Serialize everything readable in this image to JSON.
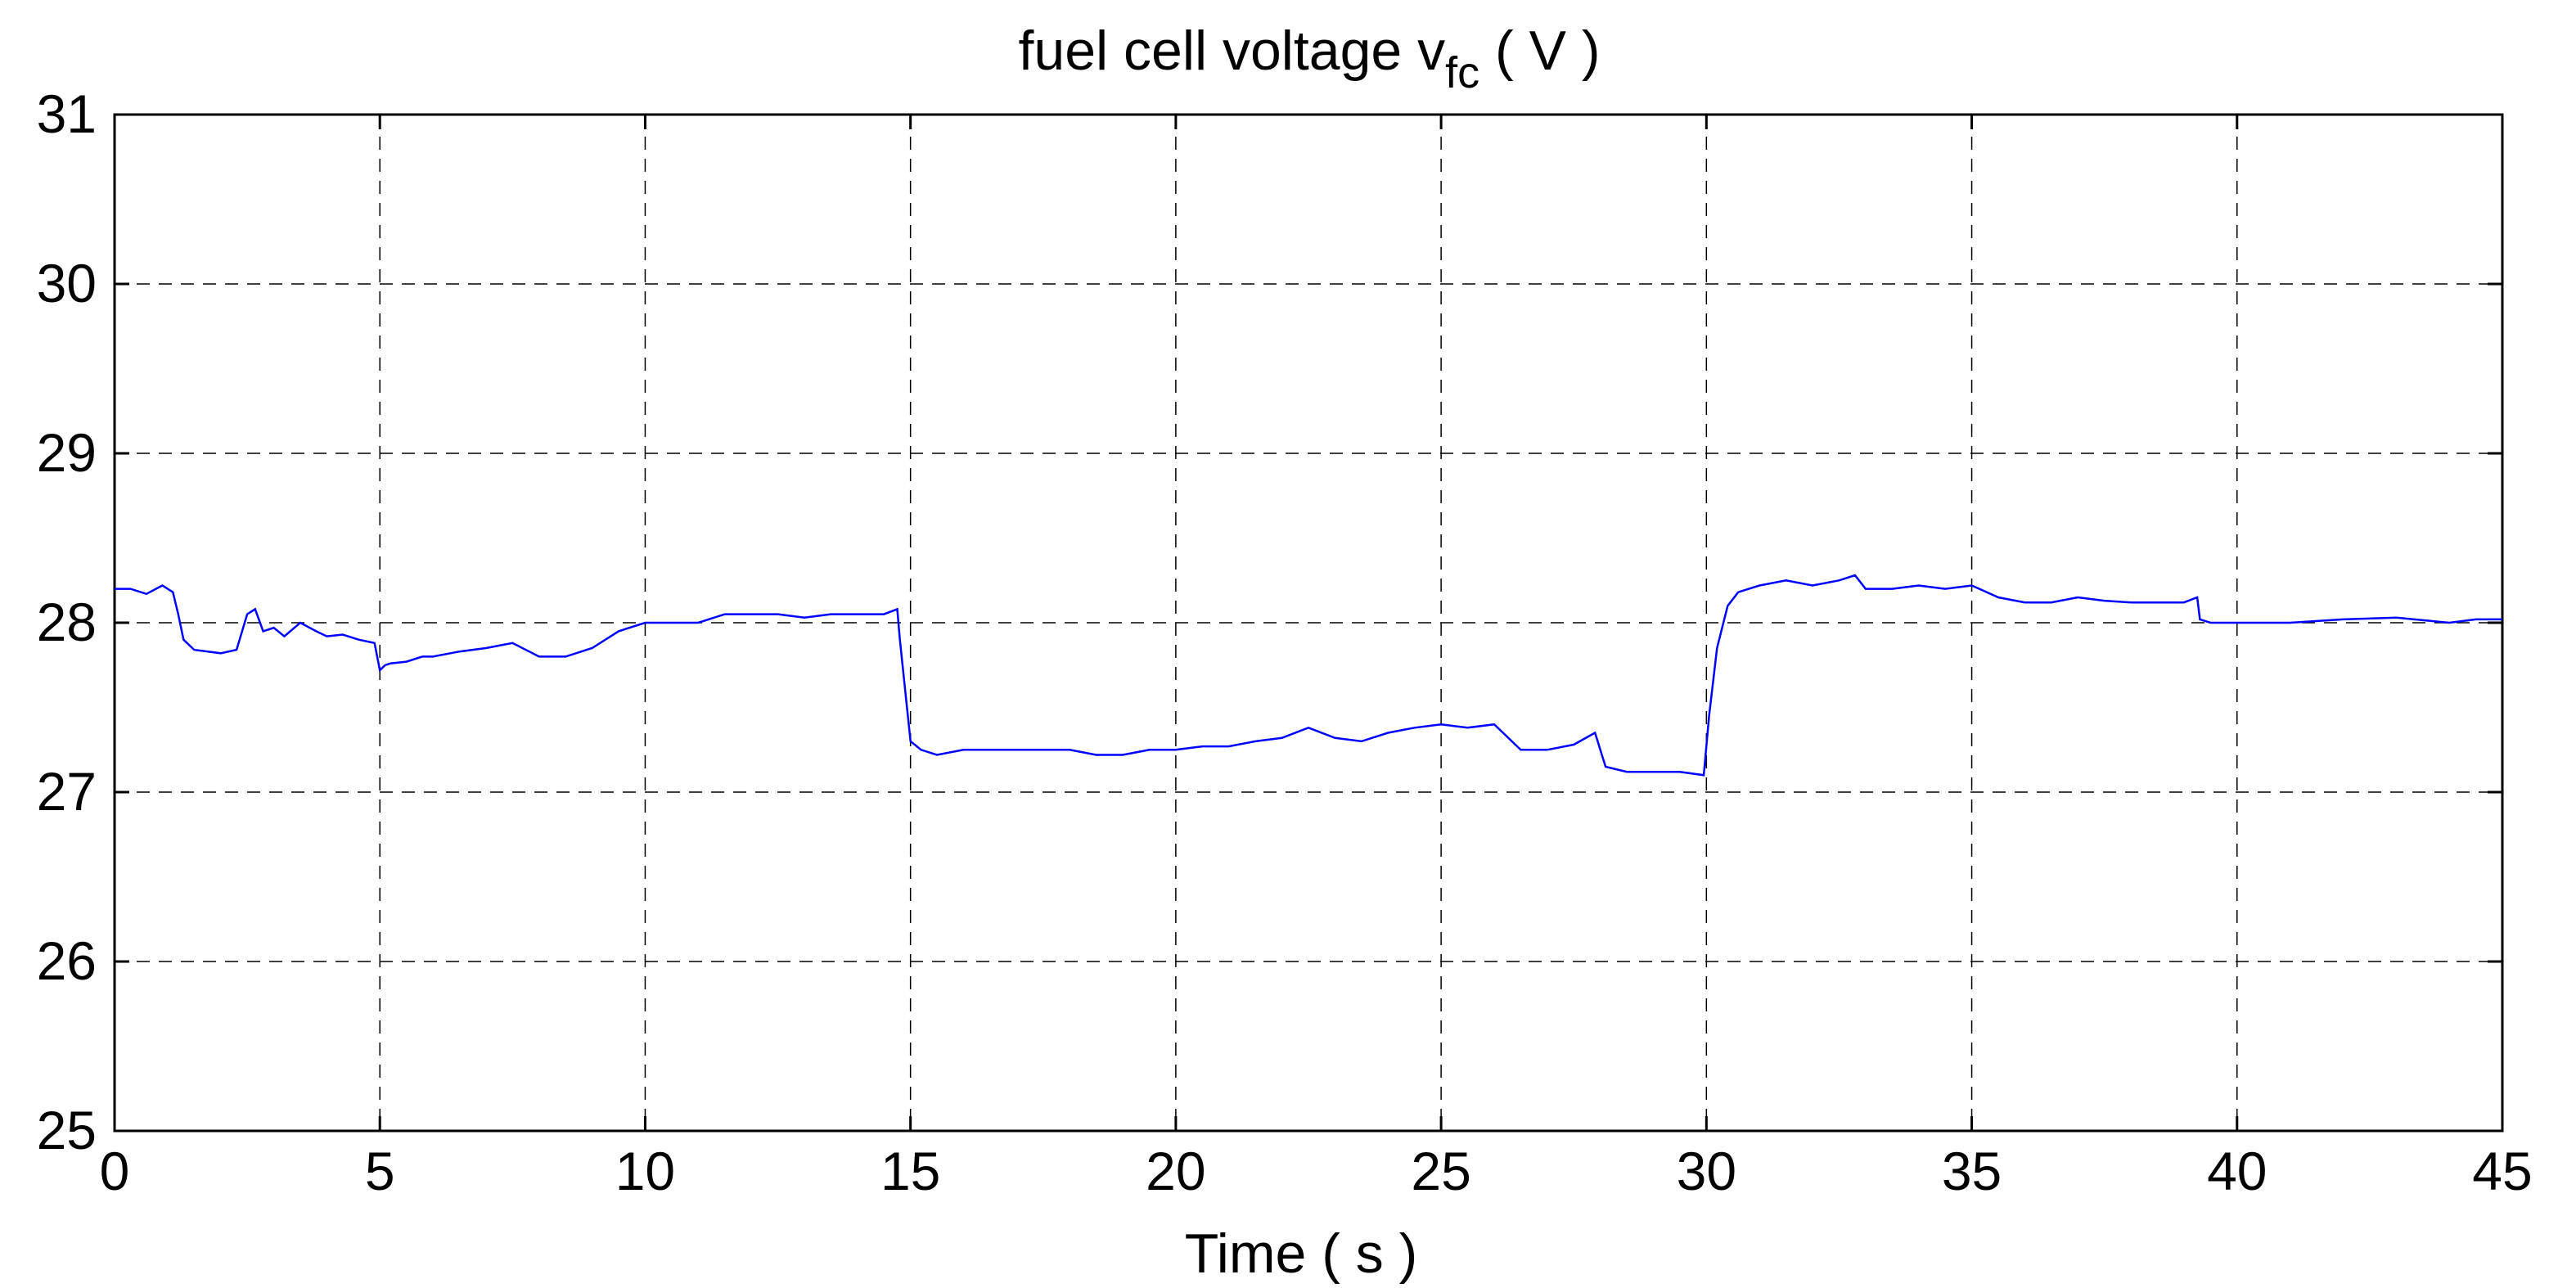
{
  "chart_data": {
    "type": "line",
    "title_main": "fuel cell voltage v",
    "title_sub": "fc",
    "title_unit": " ( V )",
    "xlabel": "Time ( s )",
    "ylabel": "",
    "xlim": [
      0,
      45
    ],
    "ylim": [
      25,
      31
    ],
    "xticks": [
      0,
      5,
      10,
      15,
      20,
      25,
      30,
      35,
      40,
      45
    ],
    "yticks": [
      25,
      26,
      27,
      28,
      29,
      30,
      31
    ],
    "grid": true,
    "line_color": "#0000ff",
    "series": [
      {
        "x": [
          0,
          0.3,
          0.6,
          0.9,
          1.1,
          1.2,
          1.3,
          1.5,
          2.0,
          2.3,
          2.5,
          2.65,
          2.8,
          3.0,
          3.2,
          3.5,
          3.8,
          4.0,
          4.3,
          4.6,
          4.9,
          5.0,
          5.1,
          5.2,
          5.5,
          5.8,
          6.0,
          6.5,
          7.0,
          7.5,
          8.0,
          8.5,
          9.0,
          9.5,
          10.0,
          10.5,
          11.0,
          11.5,
          12.0,
          12.5,
          13.0,
          13.5,
          14.0,
          14.5,
          14.75,
          14.8,
          15.0,
          15.2,
          15.5,
          16.0,
          16.5,
          17.0,
          17.5,
          18.0,
          18.5,
          19.0,
          19.5,
          20.0,
          20.5,
          21.0,
          21.5,
          22.0,
          22.5,
          23.0,
          23.5,
          24.0,
          24.5,
          25.0,
          25.5,
          26.0,
          26.5,
          27.0,
          27.5,
          27.9,
          28.1,
          28.5,
          29.0,
          29.5,
          29.95,
          30.05,
          30.2,
          30.4,
          30.6,
          30.8,
          31.0,
          31.5,
          32.0,
          32.5,
          32.8,
          33.0,
          33.5,
          34.0,
          34.5,
          35.0,
          35.5,
          36.0,
          36.5,
          37.0,
          37.5,
          38.0,
          38.5,
          39.0,
          39.25,
          39.3,
          39.5,
          40.0,
          41.0,
          42.0,
          43.0,
          44.0,
          44.5,
          45.0
        ],
        "values": [
          28.2,
          28.2,
          28.17,
          28.22,
          28.18,
          28.05,
          27.9,
          27.84,
          27.82,
          27.84,
          28.05,
          28.08,
          27.95,
          27.97,
          27.92,
          28.0,
          27.95,
          27.92,
          27.93,
          27.9,
          27.88,
          27.72,
          27.75,
          27.76,
          27.77,
          27.8,
          27.8,
          27.83,
          27.85,
          27.88,
          27.8,
          27.8,
          27.85,
          27.95,
          28.0,
          28.0,
          28.0,
          28.05,
          28.05,
          28.05,
          28.03,
          28.05,
          28.05,
          28.05,
          28.08,
          27.9,
          27.3,
          27.25,
          27.22,
          27.25,
          27.25,
          27.25,
          27.25,
          27.25,
          27.22,
          27.22,
          27.25,
          27.25,
          27.27,
          27.27,
          27.3,
          27.32,
          27.38,
          27.32,
          27.3,
          27.35,
          27.38,
          27.4,
          27.38,
          27.4,
          27.25,
          27.25,
          27.28,
          27.35,
          27.15,
          27.12,
          27.12,
          27.12,
          27.1,
          27.45,
          27.85,
          28.1,
          28.18,
          28.2,
          28.22,
          28.25,
          28.22,
          28.25,
          28.28,
          28.2,
          28.2,
          28.22,
          28.2,
          28.22,
          28.15,
          28.12,
          28.12,
          28.15,
          28.13,
          28.12,
          28.12,
          28.12,
          28.15,
          28.02,
          28.0,
          28.0,
          28.0,
          28.02,
          28.03,
          28.0,
          28.02,
          28.02
        ]
      }
    ]
  }
}
